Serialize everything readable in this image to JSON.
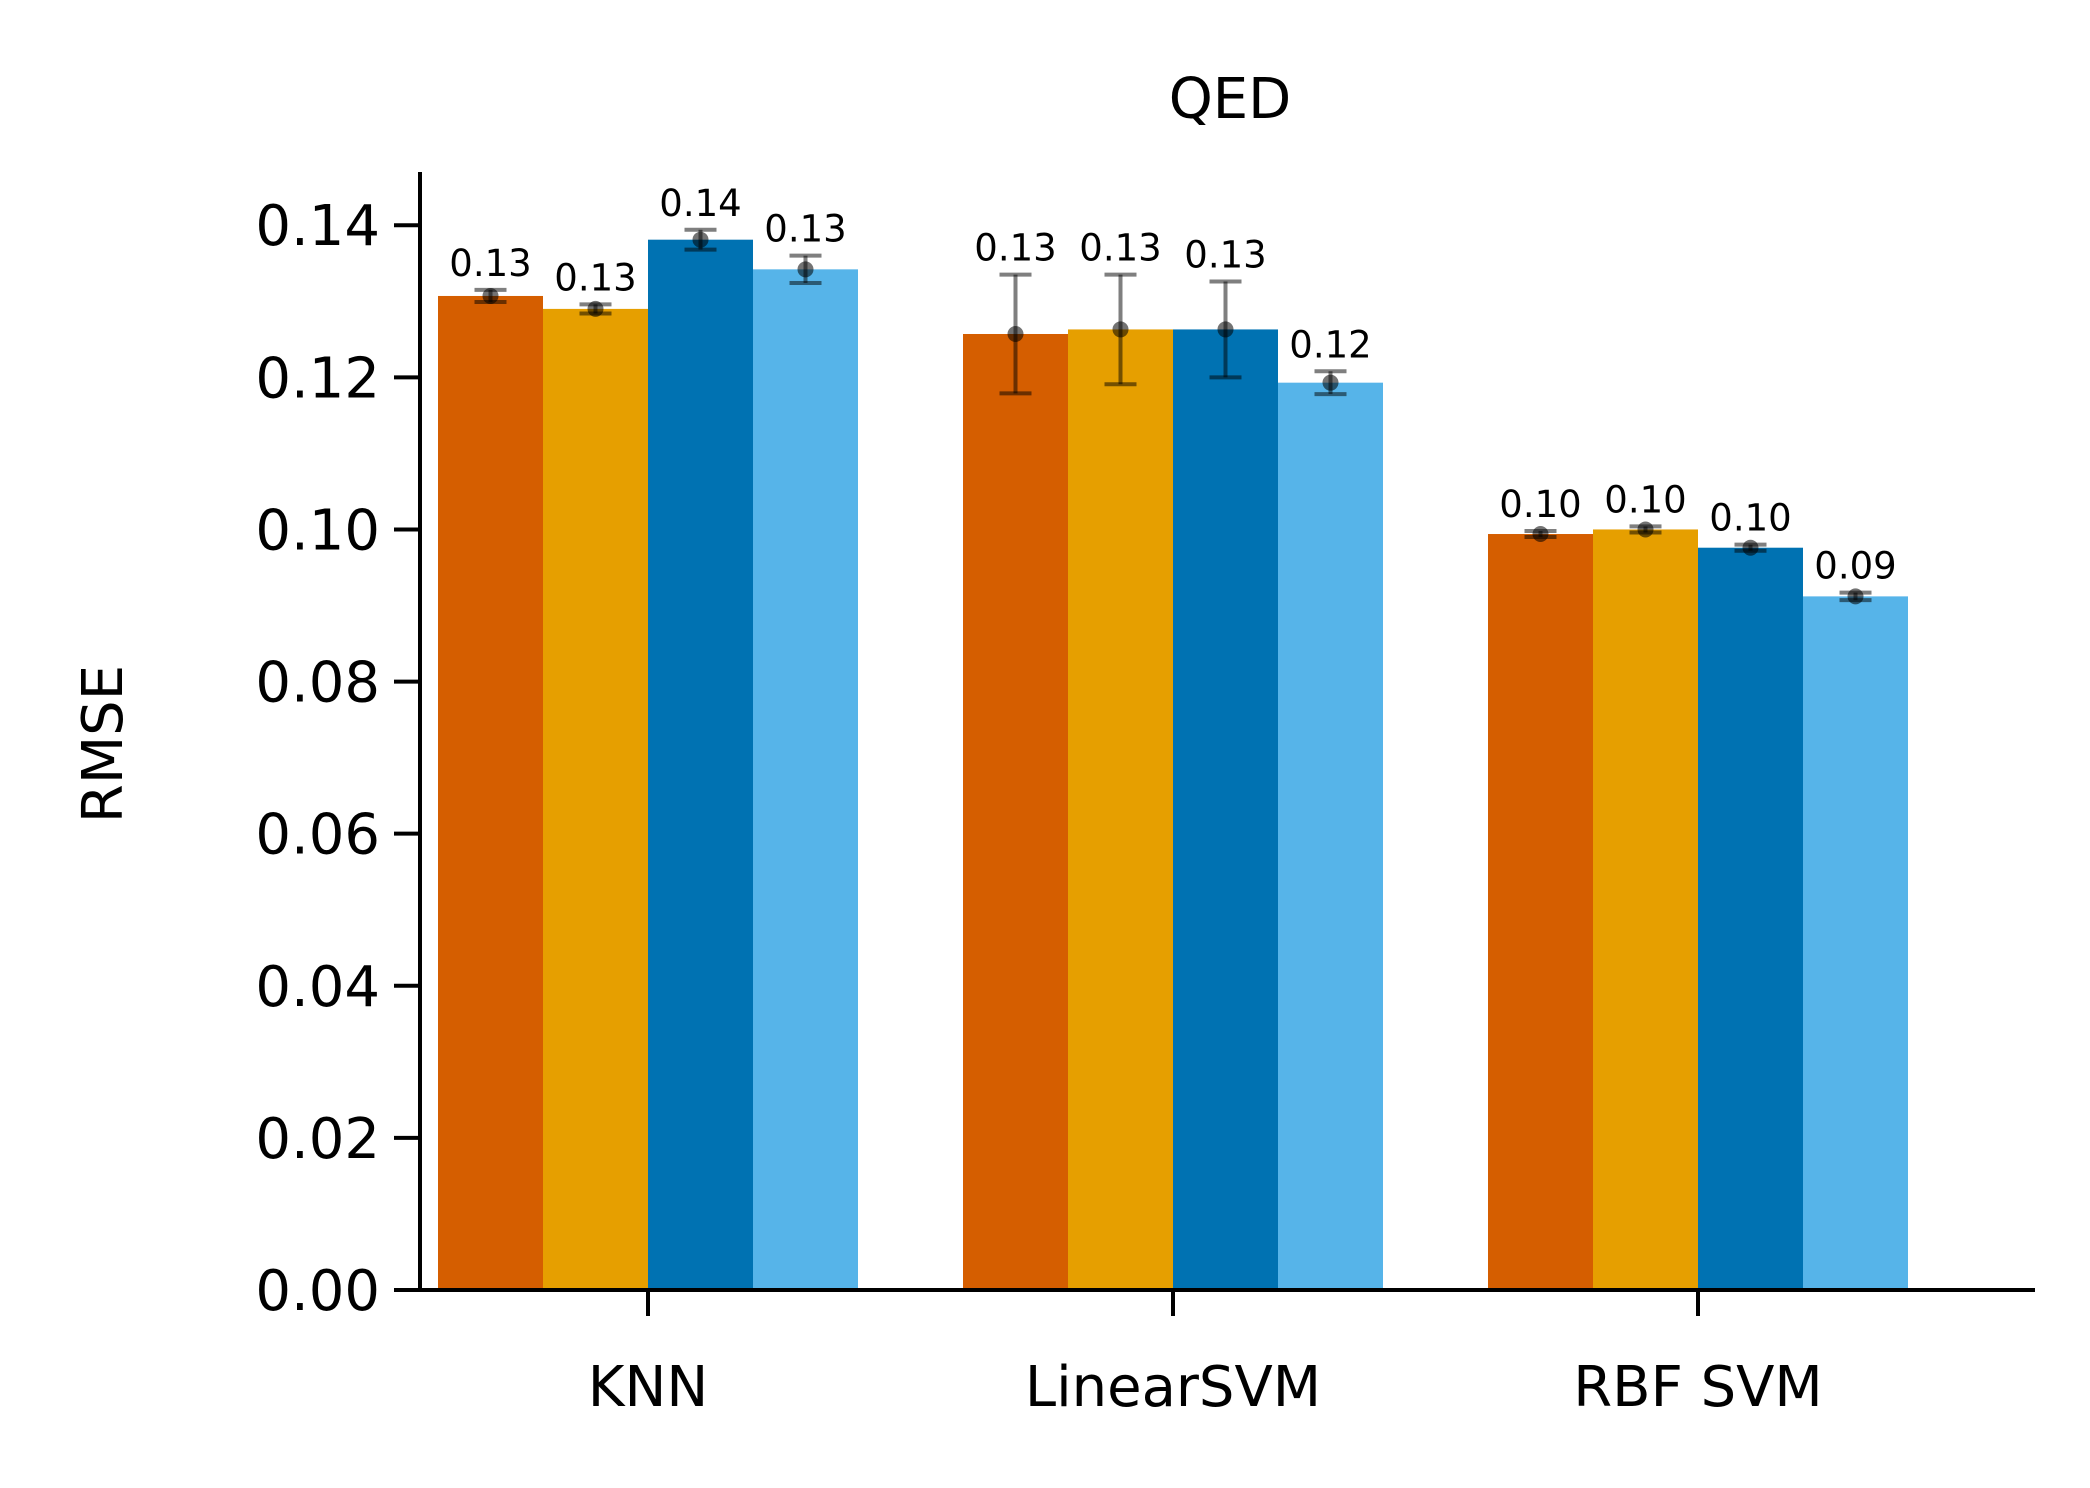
{
  "chart_data": {
    "type": "bar",
    "title": "QED",
    "xlabel": "",
    "ylabel": "RMSE",
    "categories": [
      "KNN",
      "LinearSVM",
      "RBF SVM"
    ],
    "ylim": [
      0,
      0.147
    ],
    "yticks": [
      0.0,
      0.02,
      0.04,
      0.06,
      0.08,
      0.1,
      0.12,
      0.14
    ],
    "ytick_labels": [
      "0.00",
      "0.02",
      "0.04",
      "0.06",
      "0.08",
      "0.10",
      "0.12",
      "0.14"
    ],
    "grid": false,
    "legend": "none",
    "series": [
      {
        "color": "#D55E00",
        "values": [
          0.1307,
          0.1257,
          0.0994
        ],
        "errors": [
          0.0008,
          0.0078,
          0.0004
        ],
        "labels": [
          "0.13",
          "0.13",
          "0.10"
        ]
      },
      {
        "color": "#E69F00",
        "values": [
          0.129,
          0.1263,
          0.1
        ],
        "errors": [
          0.0006,
          0.0072,
          0.0004
        ],
        "labels": [
          "0.13",
          "0.13",
          "0.10"
        ]
      },
      {
        "color": "#0072B2",
        "values": [
          0.1381,
          0.1263,
          0.0976
        ],
        "errors": [
          0.0013,
          0.0063,
          0.0004
        ],
        "labels": [
          "0.14",
          "0.13",
          "0.10"
        ]
      },
      {
        "color": "#56B4E9",
        "values": [
          0.1342,
          0.1193,
          0.0912
        ],
        "errors": [
          0.0018,
          0.0015,
          0.0005
        ],
        "labels": [
          "0.13",
          "0.12",
          "0.09"
        ]
      }
    ]
  }
}
